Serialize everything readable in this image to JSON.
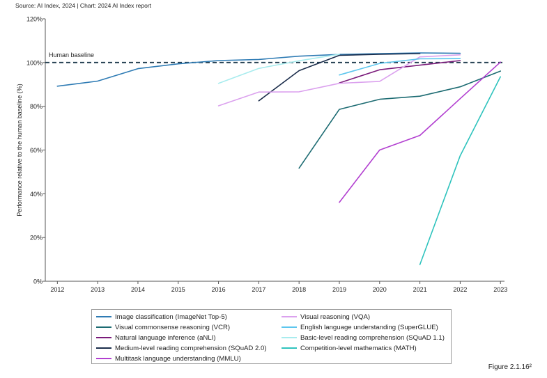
{
  "source": "Source: AI Index, 2024 | Chart: 2024 AI Index report",
  "figure_label": "Figure 2.1.16²",
  "chart_data": {
    "type": "line",
    "ylabel": "Performance relative to the human baseline (%)",
    "xlabel": "",
    "xlim": [
      2011.7,
      2023.1
    ],
    "ylim": [
      0,
      120
    ],
    "x_ticks": [
      2012,
      2013,
      2014,
      2015,
      2016,
      2017,
      2018,
      2019,
      2020,
      2021,
      2022,
      2023
    ],
    "y_ticks": [
      {
        "value": 0,
        "label": "0%"
      },
      {
        "value": 20,
        "label": "20%"
      },
      {
        "value": 40,
        "label": "40%"
      },
      {
        "value": 60,
        "label": "60%"
      },
      {
        "value": 80,
        "label": "80%"
      },
      {
        "value": 100,
        "label": "100%"
      },
      {
        "value": 120,
        "label": "120%"
      }
    ],
    "grid": false,
    "legend_position": "bottom",
    "reference_line": {
      "value": 100,
      "label": "Human baseline",
      "color": "#1f3a4d"
    },
    "series": [
      {
        "name": "Image classification (ImageNet Top-5)",
        "color": "#2e7bb4",
        "x": [
          2012,
          2013,
          2014,
          2015,
          2016,
          2017,
          2018,
          2019,
          2020,
          2021,
          2022
        ],
        "y": [
          89.2,
          91.5,
          97.2,
          99.4,
          100.9,
          101.4,
          102.9,
          103.7,
          104.1,
          104.4,
          104.2
        ]
      },
      {
        "name": "Visual commonsense reasoning (VCR)",
        "color": "#1c6b72",
        "x": [
          2018,
          2019,
          2020,
          2021,
          2022,
          2023
        ],
        "y": [
          51.7,
          78.6,
          83.2,
          84.6,
          88.9,
          96.1
        ]
      },
      {
        "name": "Natural language inference (aNLI)",
        "color": "#7a1a7a",
        "x": [
          2019,
          2020,
          2021,
          2022
        ],
        "y": [
          90.7,
          96.7,
          98.8,
          100.9
        ]
      },
      {
        "name": "Medium-level reading comprehension (SQuAD 2.0)",
        "color": "#1b2d4b",
        "x": [
          2017,
          2018,
          2019,
          2020,
          2021
        ],
        "y": [
          82.5,
          96.3,
          103.3,
          103.8,
          104.1
        ]
      },
      {
        "name": "Multitask language understanding (MMLU)",
        "color": "#b23fd0",
        "x": [
          2019,
          2020,
          2021,
          2022,
          2023
        ],
        "y": [
          36.1,
          60.0,
          66.7,
          83.5,
          100.2
        ]
      },
      {
        "name": "Visual reasoning (VQA)",
        "color": "#dba1ee",
        "x": [
          2016,
          2017,
          2018,
          2019,
          2020,
          2021,
          2022
        ],
        "y": [
          80.2,
          86.5,
          86.6,
          90.5,
          91.4,
          102.6,
          103.5
        ]
      },
      {
        "name": "English language understanding (SuperGLUE)",
        "color": "#5cc6ee",
        "x": [
          2019,
          2020,
          2021,
          2022
        ],
        "y": [
          94.3,
          99.6,
          101.7,
          101.8
        ]
      },
      {
        "name": "Basic-level reading comprehension (SQuAD 1.1)",
        "color": "#a8ecee",
        "x": [
          2016,
          2017,
          2018,
          2019
        ],
        "y": [
          90.5,
          97.3,
          100.8,
          103.8
        ]
      },
      {
        "name": "Competition-level mathematics (MATH)",
        "color": "#2ec3bd",
        "x": [
          2021,
          2022,
          2023
        ],
        "y": [
          7.6,
          57.4,
          93.5
        ]
      }
    ]
  }
}
